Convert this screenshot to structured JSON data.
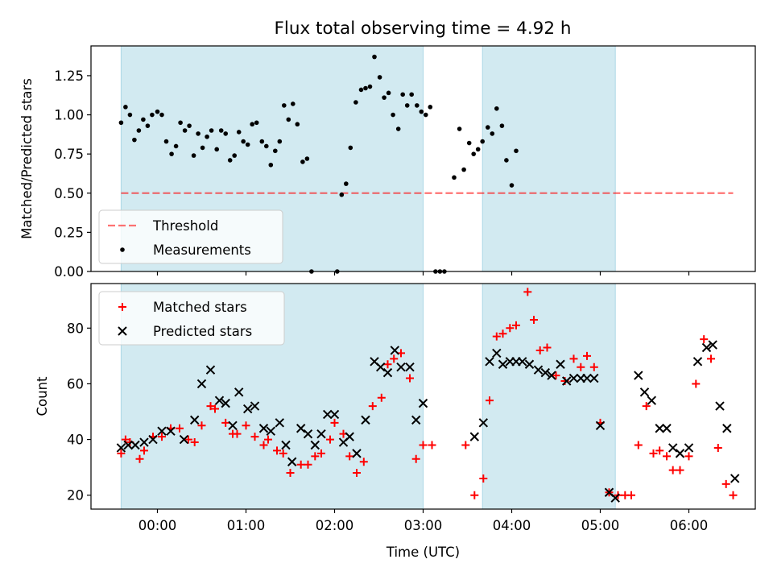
{
  "title": "Flux total observing time = 4.92 h",
  "colors": {
    "shade": "#add8e6",
    "threshold": "#ff0000",
    "matched": "#ff0000",
    "predicted": "#000000",
    "measurements": "#000000"
  },
  "chart_data": [
    {
      "type": "scatter",
      "panel": "top",
      "title": "Flux total observing time = 4.92 h",
      "xlabel": "",
      "ylabel": "Matched/Predicted stars",
      "x_unit": "hours UTC",
      "xlim": [
        -0.75,
        6.75
      ],
      "ylim": [
        0,
        1.44
      ],
      "yticks": [
        0.0,
        0.25,
        0.5,
        0.75,
        1.0,
        1.25
      ],
      "ytick_labels": [
        "0.00",
        "0.25",
        "0.50",
        "0.75",
        "1.00",
        "1.25"
      ],
      "grid": false,
      "legend": {
        "position": "lower-left",
        "entries": [
          "Threshold",
          "Measurements"
        ]
      },
      "shaded_spans": [
        [
          -0.41,
          3.0
        ],
        [
          3.67,
          5.17
        ]
      ],
      "threshold": {
        "name": "Threshold",
        "y": 0.5,
        "x_range": [
          -0.41,
          6.5
        ],
        "style": "dashed"
      },
      "series": [
        {
          "name": "Measurements",
          "marker": "dot",
          "points": [
            [
              -0.41,
              0.95
            ],
            [
              -0.36,
              1.05
            ],
            [
              -0.31,
              1.0
            ],
            [
              -0.26,
              0.84
            ],
            [
              -0.21,
              0.9
            ],
            [
              -0.16,
              0.97
            ],
            [
              -0.11,
              0.93
            ],
            [
              -0.06,
              1.0
            ],
            [
              0.0,
              1.02
            ],
            [
              0.05,
              1.0
            ],
            [
              0.1,
              0.83
            ],
            [
              0.16,
              0.75
            ],
            [
              0.21,
              0.8
            ],
            [
              0.26,
              0.95
            ],
            [
              0.31,
              0.9
            ],
            [
              0.36,
              0.93
            ],
            [
              0.41,
              0.74
            ],
            [
              0.46,
              0.88
            ],
            [
              0.51,
              0.79
            ],
            [
              0.56,
              0.86
            ],
            [
              0.61,
              0.9
            ],
            [
              0.67,
              0.78
            ],
            [
              0.72,
              0.9
            ],
            [
              0.77,
              0.88
            ],
            [
              0.82,
              0.71
            ],
            [
              0.87,
              0.74
            ],
            [
              0.92,
              0.89
            ],
            [
              0.97,
              0.83
            ],
            [
              1.02,
              0.81
            ],
            [
              1.07,
              0.94
            ],
            [
              1.12,
              0.95
            ],
            [
              1.18,
              0.83
            ],
            [
              1.23,
              0.8
            ],
            [
              1.28,
              0.68
            ],
            [
              1.33,
              0.77
            ],
            [
              1.38,
              0.83
            ],
            [
              1.43,
              1.06
            ],
            [
              1.48,
              0.97
            ],
            [
              1.53,
              1.07
            ],
            [
              1.58,
              0.94
            ],
            [
              1.64,
              0.7
            ],
            [
              1.69,
              0.72
            ],
            [
              1.74,
              0.0
            ],
            [
              2.03,
              0.0
            ],
            [
              2.08,
              0.49
            ],
            [
              2.13,
              0.56
            ],
            [
              2.18,
              0.79
            ],
            [
              2.24,
              1.08
            ],
            [
              2.3,
              1.16
            ],
            [
              2.35,
              1.17
            ],
            [
              2.4,
              1.18
            ],
            [
              2.45,
              1.37
            ],
            [
              2.51,
              1.24
            ],
            [
              2.56,
              1.11
            ],
            [
              2.61,
              1.14
            ],
            [
              2.66,
              1.0
            ],
            [
              2.72,
              0.91
            ],
            [
              2.77,
              1.13
            ],
            [
              2.82,
              1.06
            ],
            [
              2.87,
              1.13
            ],
            [
              2.93,
              1.06
            ],
            [
              2.98,
              1.02
            ],
            [
              3.03,
              1.0
            ],
            [
              3.08,
              1.05
            ],
            [
              3.14,
              0.0
            ],
            [
              3.19,
              0.0
            ],
            [
              3.24,
              0.0
            ],
            [
              3.35,
              0.6
            ],
            [
              3.41,
              0.91
            ],
            [
              3.46,
              0.65
            ],
            [
              3.52,
              0.82
            ],
            [
              3.57,
              0.75
            ],
            [
              3.62,
              0.78
            ],
            [
              3.67,
              0.83
            ],
            [
              3.73,
              0.92
            ],
            [
              3.78,
              0.88
            ],
            [
              3.83,
              1.04
            ],
            [
              3.89,
              0.93
            ],
            [
              3.94,
              0.71
            ],
            [
              4.0,
              0.55
            ],
            [
              4.05,
              0.77
            ]
          ]
        }
      ]
    },
    {
      "type": "scatter",
      "panel": "bottom",
      "title": "",
      "xlabel": "Time (UTC)",
      "ylabel": "Count",
      "x_unit": "hours UTC",
      "xlim": [
        -0.75,
        6.75
      ],
      "ylim": [
        15,
        96
      ],
      "xticks": [
        0,
        1,
        2,
        3,
        4,
        5,
        6
      ],
      "xtick_labels": [
        "00:00",
        "01:00",
        "02:00",
        "03:00",
        "04:00",
        "05:00",
        "06:00"
      ],
      "yticks": [
        20,
        40,
        60,
        80
      ],
      "ytick_labels": [
        "20",
        "40",
        "60",
        "80"
      ],
      "grid": false,
      "legend": {
        "position": "upper-left",
        "entries": [
          "Matched stars",
          "Predicted stars"
        ]
      },
      "shaded_spans": [
        [
          -0.41,
          3.0
        ],
        [
          3.67,
          5.17
        ]
      ],
      "series": [
        {
          "name": "Matched stars",
          "marker": "plus",
          "points": [
            [
              -0.41,
              35
            ],
            [
              -0.36,
              40
            ],
            [
              -0.31,
              39
            ],
            [
              -0.2,
              33
            ],
            [
              -0.15,
              36
            ],
            [
              -0.05,
              41
            ],
            [
              0.05,
              41
            ],
            [
              0.15,
              44
            ],
            [
              0.25,
              44
            ],
            [
              0.35,
              40
            ],
            [
              0.42,
              39
            ],
            [
              0.5,
              45
            ],
            [
              0.6,
              52
            ],
            [
              0.65,
              51
            ],
            [
              0.77,
              46
            ],
            [
              0.85,
              42
            ],
            [
              0.9,
              42
            ],
            [
              1.0,
              45
            ],
            [
              1.1,
              41
            ],
            [
              1.2,
              38
            ],
            [
              1.25,
              40
            ],
            [
              1.35,
              36
            ],
            [
              1.42,
              35
            ],
            [
              1.5,
              28
            ],
            [
              1.62,
              31
            ],
            [
              1.7,
              31
            ],
            [
              1.78,
              34
            ],
            [
              1.85,
              35
            ],
            [
              1.95,
              40
            ],
            [
              2.0,
              46
            ],
            [
              2.1,
              42
            ],
            [
              2.17,
              34
            ],
            [
              2.25,
              28
            ],
            [
              2.33,
              32
            ],
            [
              2.43,
              52
            ],
            [
              2.53,
              55
            ],
            [
              2.6,
              67
            ],
            [
              2.67,
              69
            ],
            [
              2.75,
              71
            ],
            [
              2.85,
              62
            ],
            [
              2.92,
              33
            ],
            [
              3.0,
              38
            ],
            [
              3.1,
              38
            ],
            [
              3.48,
              38
            ],
            [
              3.58,
              20
            ],
            [
              3.68,
              26
            ],
            [
              3.75,
              54
            ],
            [
              3.83,
              77
            ],
            [
              3.9,
              78
            ],
            [
              3.98,
              80
            ],
            [
              4.05,
              81
            ],
            [
              4.18,
              93
            ],
            [
              4.25,
              83
            ],
            [
              4.32,
              72
            ],
            [
              4.4,
              73
            ],
            [
              4.5,
              63
            ],
            [
              4.6,
              61
            ],
            [
              4.7,
              69
            ],
            [
              4.78,
              66
            ],
            [
              4.85,
              70
            ],
            [
              4.93,
              66
            ],
            [
              5.0,
              46
            ],
            [
              5.1,
              21
            ],
            [
              5.2,
              20
            ],
            [
              5.28,
              20
            ],
            [
              5.35,
              20
            ],
            [
              5.43,
              38
            ],
            [
              5.52,
              52
            ],
            [
              5.6,
              35
            ],
            [
              5.67,
              36
            ],
            [
              5.75,
              34
            ],
            [
              5.82,
              29
            ],
            [
              5.9,
              29
            ],
            [
              6.0,
              34
            ],
            [
              6.08,
              60
            ],
            [
              6.17,
              76
            ],
            [
              6.25,
              69
            ],
            [
              6.33,
              37
            ],
            [
              6.42,
              24
            ],
            [
              6.5,
              20
            ]
          ]
        },
        {
          "name": "Predicted stars",
          "marker": "x",
          "points": [
            [
              -0.41,
              37
            ],
            [
              -0.33,
              38
            ],
            [
              -0.25,
              38
            ],
            [
              -0.15,
              39
            ],
            [
              -0.05,
              40
            ],
            [
              0.05,
              43
            ],
            [
              0.15,
              43
            ],
            [
              0.3,
              40
            ],
            [
              0.42,
              47
            ],
            [
              0.5,
              60
            ],
            [
              0.6,
              65
            ],
            [
              0.7,
              54
            ],
            [
              0.77,
              53
            ],
            [
              0.85,
              45
            ],
            [
              0.92,
              57
            ],
            [
              1.02,
              51
            ],
            [
              1.1,
              52
            ],
            [
              1.2,
              44
            ],
            [
              1.28,
              43
            ],
            [
              1.38,
              46
            ],
            [
              1.45,
              38
            ],
            [
              1.52,
              32
            ],
            [
              1.62,
              44
            ],
            [
              1.7,
              42
            ],
            [
              1.78,
              38
            ],
            [
              1.85,
              42
            ],
            [
              1.92,
              49
            ],
            [
              2.0,
              49
            ],
            [
              2.1,
              39
            ],
            [
              2.17,
              41
            ],
            [
              2.25,
              35
            ],
            [
              2.35,
              47
            ],
            [
              2.45,
              68
            ],
            [
              2.52,
              66
            ],
            [
              2.6,
              64
            ],
            [
              2.68,
              72
            ],
            [
              2.75,
              66
            ],
            [
              2.85,
              66
            ],
            [
              2.92,
              47
            ],
            [
              3.0,
              53
            ],
            [
              3.58,
              41
            ],
            [
              3.68,
              46
            ],
            [
              3.75,
              68
            ],
            [
              3.83,
              71
            ],
            [
              3.9,
              67
            ],
            [
              3.98,
              68
            ],
            [
              4.05,
              68
            ],
            [
              4.12,
              68
            ],
            [
              4.2,
              67
            ],
            [
              4.3,
              65
            ],
            [
              4.38,
              64
            ],
            [
              4.45,
              63
            ],
            [
              4.55,
              67
            ],
            [
              4.62,
              61
            ],
            [
              4.7,
              62
            ],
            [
              4.78,
              62
            ],
            [
              4.85,
              62
            ],
            [
              4.93,
              62
            ],
            [
              5.0,
              45
            ],
            [
              5.1,
              21
            ],
            [
              5.17,
              19
            ],
            [
              5.43,
              63
            ],
            [
              5.5,
              57
            ],
            [
              5.58,
              54
            ],
            [
              5.67,
              44
            ],
            [
              5.75,
              44
            ],
            [
              5.82,
              37
            ],
            [
              5.9,
              35
            ],
            [
              6.0,
              37
            ],
            [
              6.1,
              68
            ],
            [
              6.2,
              73
            ],
            [
              6.27,
              74
            ],
            [
              6.35,
              52
            ],
            [
              6.43,
              44
            ],
            [
              6.52,
              26
            ]
          ]
        }
      ]
    }
  ]
}
